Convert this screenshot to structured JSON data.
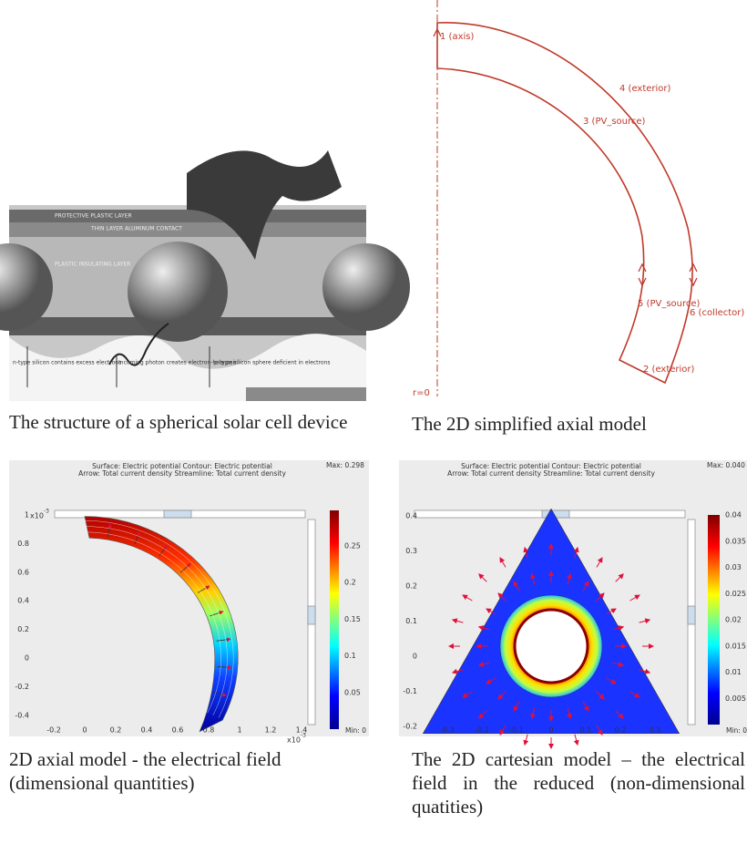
{
  "solar_cell_figure": {
    "labels": [
      "PROTECTIVE PLASTIC LAYER",
      "THIN LAYER ALUMINUM CONTACT",
      "PLASTIC INSULATING LAYER",
      "n-type silicon contains excess electrons",
      "Incoming photon creates electron-hole pair",
      "p-type silicon sphere deficient in electrons"
    ],
    "caption": "The structure of a spherical solar cell device"
  },
  "axial_model_diagram": {
    "boundaries": [
      "1 (axis)",
      "4 (exterior)",
      "3 (PV_source)",
      "5 (PV_source)",
      "6 (collector)",
      "2 (exterior)"
    ],
    "axis_label": "r=0",
    "caption": "The 2D simplified axial model"
  },
  "axial_field_plot": {
    "header": [
      "Surface: Electric potential   Contour: Electric potential",
      "Arrow: Total current density   Streamline: Total current density"
    ],
    "max_label": "Max: 0.298",
    "min_label": "Min: 0",
    "xticks": [
      -0.2,
      0,
      0.2,
      0.4,
      0.6,
      0.8,
      1,
      1.2,
      1.4
    ],
    "yticks": [
      -0.4,
      -0.2,
      0,
      0.2,
      0.4,
      0.6,
      0.8,
      1
    ],
    "colorbar_ticks": [
      0.05,
      0.1,
      0.15,
      0.2,
      0.25
    ],
    "axis_multiplier": {
      "base": "x10",
      "power": "-3"
    },
    "caption": "2D axial model - the electrical field (dimensional quantities)"
  },
  "cartesian_field_plot": {
    "header": [
      "Surface: Electric potential   Contour: Electric potential",
      "Arrow: Total current density   Streamline: Total current density"
    ],
    "max_label": "Max: 0.040",
    "min_label": "Min: 0",
    "xticks": [
      -0.3,
      -0.2,
      -0.1,
      0,
      0.1,
      0.2,
      0.3
    ],
    "yticks": [
      -0.2,
      -0.1,
      0,
      0.1,
      0.2,
      0.3,
      0.4
    ],
    "colorbar_ticks": [
      0.005,
      0.01,
      0.015,
      0.02,
      0.025,
      0.03,
      0.035,
      0.04
    ],
    "caption": "The 2D cartesian model – the electrical field in the reduced (non-dimensional quatities)"
  }
}
